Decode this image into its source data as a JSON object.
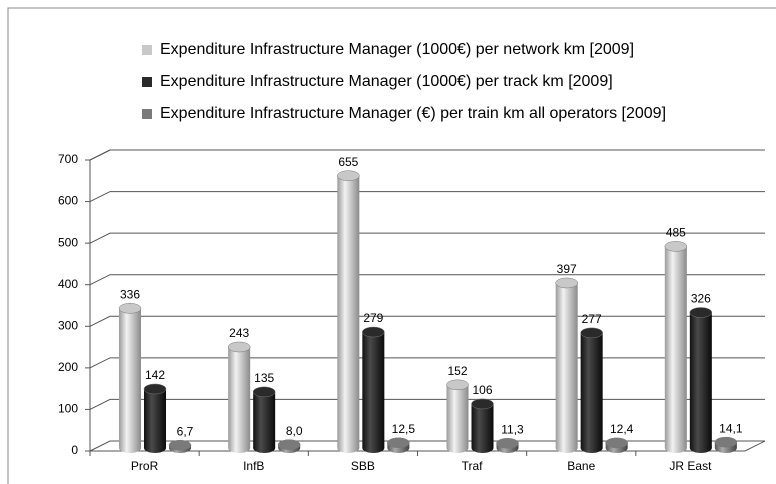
{
  "chart_data": {
    "type": "bar",
    "categories": [
      "ProR",
      "InfB",
      "SBB",
      "Traf",
      "Bane",
      "JR East"
    ],
    "series": [
      {
        "name": "Expenditure Infrastructure Manager (1000€) per network km [2009]",
        "color": "#c8c8c8",
        "values": [
          336,
          243,
          655,
          152,
          397,
          485
        ]
      },
      {
        "name": "Expenditure Infrastructure Manager (1000€) per track km [2009]",
        "color": "#2a2a2a",
        "values": [
          142,
          135,
          279,
          106,
          277,
          326
        ]
      },
      {
        "name": "Expenditure Infrastructure Manager (€) per train km all operators [2009]",
        "color": "#7a7a7a",
        "values": [
          6.7,
          8.0,
          12.5,
          11.3,
          12.4,
          14.1
        ],
        "value_labels": [
          "6,7",
          "8,0",
          "12,5",
          "11,3",
          "12,4",
          "14,1"
        ]
      }
    ],
    "ylim": [
      0,
      700
    ],
    "yticks": [
      0,
      100,
      200,
      300,
      400,
      500,
      600,
      700
    ],
    "grid": true,
    "legend": "top"
  }
}
